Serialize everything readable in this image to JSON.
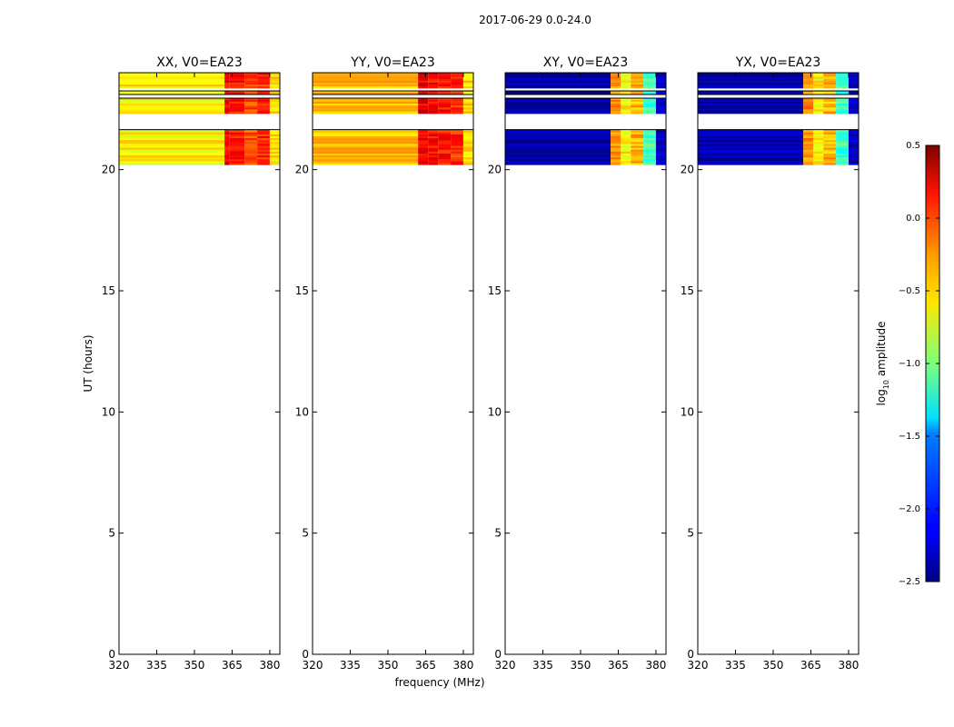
{
  "figure": {
    "suptitle": "2017-06-29 0.0-24.0",
    "xlabel": "frequency (MHz)",
    "ylabel": "UT (hours)",
    "colorbar_label_base": "log",
    "colorbar_label_sub": "10",
    "colorbar_label_rest": " amplitude"
  },
  "chart_data": {
    "type": "heatmap",
    "colormap": "jet",
    "xlim": [
      320,
      384
    ],
    "ylim": [
      0,
      24
    ],
    "xticks": [
      320,
      335,
      350,
      365,
      380
    ],
    "yticks": [
      0,
      5,
      10,
      15,
      20
    ],
    "data_time_range_hours": [
      20.2,
      24.0
    ],
    "flagged_bands_hours": [
      [
        22.95,
        23.1
      ],
      [
        23.25,
        23.35
      ],
      [
        21.65,
        22.3
      ]
    ],
    "panels": [
      {
        "title": "XX, V0=EA23",
        "background_log_amp": -0.6,
        "channel_groups": [
          {
            "freq_range": [
              320,
              362
            ],
            "log_amp": -0.6
          },
          {
            "freq_range": [
              362,
              364
            ],
            "log_amp": 0.15
          },
          {
            "freq_range": [
              364,
              370
            ],
            "log_amp": 0.05
          },
          {
            "freq_range": [
              370,
              375
            ],
            "log_amp": -0.1
          },
          {
            "freq_range": [
              375,
              380
            ],
            "log_amp": 0.0
          },
          {
            "freq_range": [
              380,
              384
            ],
            "log_amp": -0.55
          }
        ]
      },
      {
        "title": "YY, V0=EA23",
        "background_log_amp": -0.45,
        "channel_groups": [
          {
            "freq_range": [
              320,
              362
            ],
            "log_amp": -0.45
          },
          {
            "freq_range": [
              362,
              366
            ],
            "log_amp": 0.2
          },
          {
            "freq_range": [
              366,
              370
            ],
            "log_amp": 0.1
          },
          {
            "freq_range": [
              370,
              375
            ],
            "log_amp": 0.05
          },
          {
            "freq_range": [
              375,
              380
            ],
            "log_amp": 0.0
          },
          {
            "freq_range": [
              380,
              384
            ],
            "log_amp": -0.5
          }
        ]
      },
      {
        "title": "XY, V0=EA23",
        "background_log_amp": -2.4,
        "channel_groups": [
          {
            "freq_range": [
              320,
              362
            ],
            "log_amp": -2.4
          },
          {
            "freq_range": [
              362,
              366
            ],
            "log_amp": -0.3
          },
          {
            "freq_range": [
              366,
              370
            ],
            "log_amp": -0.6
          },
          {
            "freq_range": [
              370,
              375
            ],
            "log_amp": -0.4
          },
          {
            "freq_range": [
              375,
              380
            ],
            "log_amp": -1.2
          },
          {
            "freq_range": [
              380,
              384
            ],
            "log_amp": -2.3
          }
        ]
      },
      {
        "title": "YX, V0=EA23",
        "background_log_amp": -2.4,
        "channel_groups": [
          {
            "freq_range": [
              320,
              362
            ],
            "log_amp": -2.4
          },
          {
            "freq_range": [
              362,
              366
            ],
            "log_amp": -0.3
          },
          {
            "freq_range": [
              366,
              370
            ],
            "log_amp": -0.6
          },
          {
            "freq_range": [
              370,
              375
            ],
            "log_amp": -0.4
          },
          {
            "freq_range": [
              375,
              380
            ],
            "log_amp": -1.2
          },
          {
            "freq_range": [
              380,
              384
            ],
            "log_amp": -2.3
          }
        ]
      }
    ],
    "colorbar": {
      "range": [
        -2.5,
        0.5
      ],
      "ticks": [
        0.5,
        0.0,
        -0.5,
        -1.0,
        -1.5,
        -2.0,
        -2.5
      ],
      "tick_labels": [
        "0.5",
        "0.0",
        "−0.5",
        "−1.0",
        "−1.5",
        "−2.0",
        "−2.5"
      ]
    }
  }
}
